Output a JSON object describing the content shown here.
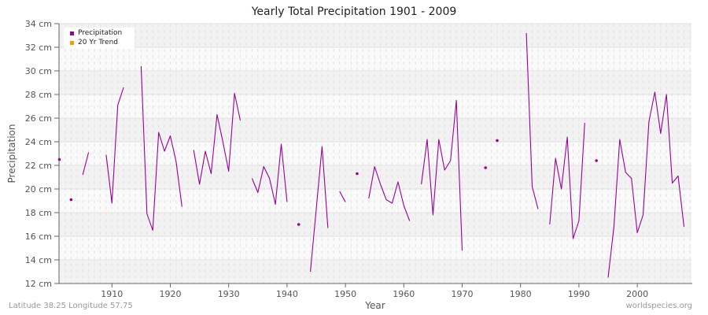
{
  "chart_data": {
    "type": "line",
    "title": "Yearly Total Precipitation 1901 - 2009",
    "xlabel": "Year",
    "ylabel": "Precipitation",
    "xlim": [
      1901,
      2009
    ],
    "ylim": [
      12,
      34
    ],
    "x_ticks": [
      1910,
      1920,
      1930,
      1940,
      1950,
      1960,
      1970,
      1980,
      1990,
      2000
    ],
    "y_ticks": [
      "12 cm",
      "14 cm",
      "16 cm",
      "18 cm",
      "20 cm",
      "22 cm",
      "24 cm",
      "26 cm",
      "28 cm",
      "30 cm",
      "32 cm",
      "34 cm"
    ],
    "grid": true,
    "legend_position": "top-left",
    "series": [
      {
        "name": "Precipitation",
        "color": "#990099",
        "unit": "cm",
        "points": [
          [
            1901,
            22.5
          ],
          [
            1903,
            19.1
          ],
          [
            1905,
            21.2
          ],
          [
            1906,
            23.1
          ],
          [
            1909,
            22.9
          ],
          [
            1910,
            18.8
          ],
          [
            1911,
            27.1
          ],
          [
            1912,
            28.6
          ],
          [
            1915,
            30.4
          ],
          [
            1916,
            17.9
          ],
          [
            1917,
            16.5
          ],
          [
            1918,
            24.8
          ],
          [
            1919,
            23.2
          ],
          [
            1920,
            24.5
          ],
          [
            1921,
            22.3
          ],
          [
            1922,
            18.5
          ],
          [
            1924,
            23.3
          ],
          [
            1925,
            20.4
          ],
          [
            1926,
            23.2
          ],
          [
            1927,
            21.3
          ],
          [
            1928,
            26.3
          ],
          [
            1929,
            24.0
          ],
          [
            1930,
            21.5
          ],
          [
            1931,
            28.1
          ],
          [
            1932,
            25.8
          ],
          [
            1934,
            20.9
          ],
          [
            1935,
            19.7
          ],
          [
            1936,
            21.9
          ],
          [
            1937,
            20.9
          ],
          [
            1938,
            18.7
          ],
          [
            1939,
            23.8
          ],
          [
            1940,
            18.9
          ],
          [
            1942,
            17.0
          ],
          [
            1944,
            13.0
          ],
          [
            1945,
            18.3
          ],
          [
            1946,
            23.6
          ],
          [
            1947,
            16.7
          ],
          [
            1949,
            19.8
          ],
          [
            1950,
            18.9
          ],
          [
            1952,
            21.3
          ],
          [
            1954,
            19.2
          ],
          [
            1955,
            21.9
          ],
          [
            1956,
            20.4
          ],
          [
            1957,
            19.1
          ],
          [
            1958,
            18.8
          ],
          [
            1959,
            20.6
          ],
          [
            1960,
            18.6
          ],
          [
            1961,
            17.3
          ],
          [
            1963,
            20.4
          ],
          [
            1964,
            24.2
          ],
          [
            1965,
            17.8
          ],
          [
            1966,
            24.2
          ],
          [
            1967,
            21.6
          ],
          [
            1968,
            22.4
          ],
          [
            1969,
            27.5
          ],
          [
            1970,
            14.8
          ],
          [
            1974,
            21.8
          ],
          [
            1976,
            24.1
          ],
          [
            1981,
            33.2
          ],
          [
            1982,
            20.2
          ],
          [
            1983,
            18.3
          ],
          [
            1985,
            17.0
          ],
          [
            1986,
            22.6
          ],
          [
            1987,
            20.0
          ],
          [
            1988,
            24.4
          ],
          [
            1989,
            15.8
          ],
          [
            1990,
            17.3
          ],
          [
            1991,
            25.6
          ],
          [
            1993,
            22.4
          ],
          [
            1995,
            12.5
          ],
          [
            1996,
            16.8
          ],
          [
            1997,
            24.2
          ],
          [
            1998,
            21.4
          ],
          [
            1999,
            20.9
          ],
          [
            2000,
            16.3
          ],
          [
            2001,
            17.8
          ],
          [
            2002,
            25.7
          ],
          [
            2003,
            28.2
          ],
          [
            2004,
            24.7
          ],
          [
            2005,
            28.0
          ],
          [
            2006,
            20.5
          ],
          [
            2007,
            21.1
          ],
          [
            2008,
            16.8
          ]
        ]
      },
      {
        "name": "20 Yr Trend",
        "color": "#ff9900",
        "points": []
      }
    ]
  },
  "legend": {
    "items": [
      {
        "label": "Precipitation",
        "color": "#990099"
      },
      {
        "label": "20 Yr Trend",
        "color": "#ff9900"
      }
    ]
  },
  "footer": {
    "location": "Latitude 38.25 Longitude 57.75",
    "source": "worldspecies.org"
  }
}
